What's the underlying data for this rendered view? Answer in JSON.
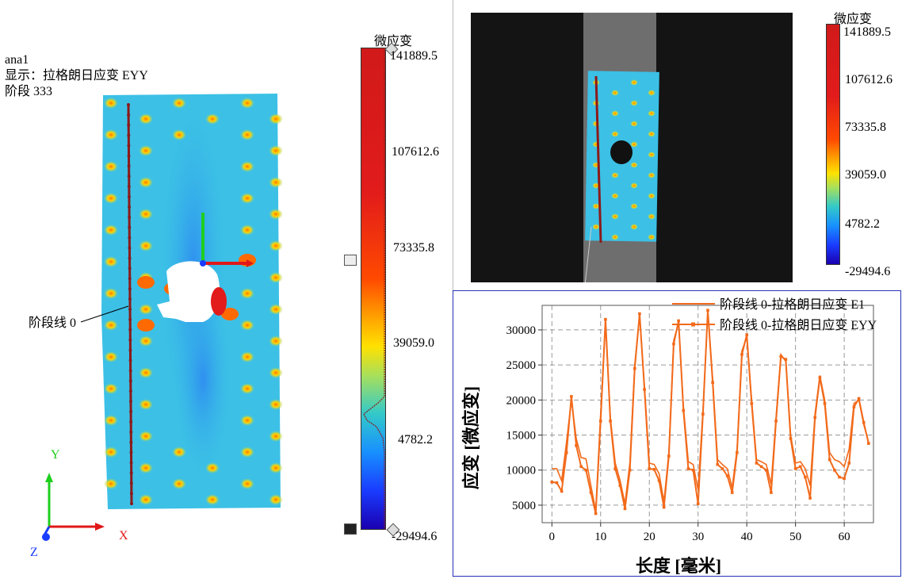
{
  "left_view": {
    "name": "ana1",
    "display": "显示：拉格朗日应变 EYY",
    "stage": "阶段 333",
    "line_label": "阶段线 0",
    "axes": {
      "x": "X",
      "y": "Y",
      "z": "Z"
    },
    "colorbar": {
      "title": "微应变",
      "ticks": [
        "141889.5",
        "107612.6",
        "73335.8",
        "39059.0",
        "4782.2",
        "-29494.6"
      ]
    }
  },
  "right_view": {
    "colorbar": {
      "title": "微应变",
      "ticks": [
        "141889.5",
        "107612.6",
        "73335.8",
        "39059.0",
        "4782.2",
        "-29494.6"
      ]
    }
  },
  "colors": {
    "series": "#f26a1b",
    "line": "#8b1a1a",
    "chart_border": "#2433b8"
  },
  "chart_data": {
    "type": "line",
    "xlabel": "长度 [毫米]",
    "ylabel": "应变 [微应变]",
    "xlim": [
      -2,
      66
    ],
    "ylim": [
      2500,
      33500
    ],
    "x_ticks": [
      "0",
      "10",
      "20",
      "30",
      "40",
      "50",
      "60"
    ],
    "y_ticks": [
      "5000",
      "10000",
      "15000",
      "20000",
      "25000",
      "30000"
    ],
    "series": [
      {
        "name": "阶段线 0-拉格朗日应变 E1",
        "x": [
          0,
          1,
          2,
          3,
          4,
          5,
          6,
          7,
          8,
          9,
          10,
          11,
          12,
          13,
          14,
          15,
          16,
          17,
          18,
          19,
          20,
          21,
          22,
          23,
          24,
          25,
          26,
          27,
          28,
          29,
          30,
          31,
          32,
          33,
          34,
          35,
          36,
          37,
          38,
          39,
          40,
          41,
          42,
          43,
          44,
          45,
          46,
          47,
          48,
          49,
          50,
          51,
          52,
          53,
          54,
          55,
          56,
          57,
          58,
          59,
          60,
          61,
          62,
          63,
          64,
          65
        ],
        "values": [
          10200,
          10200,
          8500,
          14000,
          20000,
          14500,
          11800,
          11600,
          7800,
          4200,
          18000,
          31200,
          17500,
          11000,
          8500,
          5200,
          11000,
          25000,
          32000,
          22000,
          11000,
          10800,
          9500,
          5500,
          12500,
          28500,
          31000,
          19000,
          11200,
          10800,
          7200,
          18500,
          32500,
          23000,
          11500,
          10800,
          10200,
          7500,
          13000,
          27000,
          29000,
          20000,
          11500,
          11200,
          10800,
          8000,
          17500,
          26500,
          25500,
          15000,
          11000,
          11200,
          10200,
          7800,
          18000,
          23500,
          20000,
          12500,
          11500,
          11200,
          10500,
          13000,
          19500,
          20000,
          16500,
          14000
        ]
      },
      {
        "name": "阶段线 0-拉格朗日应变 EYY",
        "x": [
          0,
          1,
          2,
          3,
          4,
          5,
          6,
          7,
          8,
          9,
          10,
          11,
          12,
          13,
          14,
          15,
          16,
          17,
          18,
          19,
          20,
          21,
          22,
          23,
          24,
          25,
          26,
          27,
          28,
          29,
          30,
          31,
          32,
          33,
          34,
          35,
          36,
          37,
          38,
          39,
          40,
          41,
          42,
          43,
          44,
          45,
          46,
          47,
          48,
          49,
          50,
          51,
          52,
          53,
          54,
          55,
          56,
          57,
          58,
          59,
          60,
          61,
          62,
          63,
          64,
          65
        ],
        "values": [
          8300,
          8200,
          7000,
          12500,
          20500,
          13500,
          10500,
          10000,
          6800,
          3800,
          17000,
          31500,
          17000,
          10200,
          7800,
          4500,
          10000,
          24500,
          32300,
          21500,
          10200,
          10100,
          8500,
          4700,
          12000,
          28000,
          31300,
          18500,
          10200,
          10000,
          5200,
          18000,
          32800,
          22500,
          10800,
          10200,
          9200,
          6800,
          12500,
          26500,
          29300,
          19500,
          11000,
          10500,
          10000,
          6800,
          17000,
          26200,
          25800,
          14500,
          10200,
          10500,
          9000,
          6000,
          17500,
          23200,
          19500,
          11500,
          10000,
          9000,
          8800,
          11000,
          19000,
          20200,
          16800,
          13800
        ]
      }
    ]
  }
}
